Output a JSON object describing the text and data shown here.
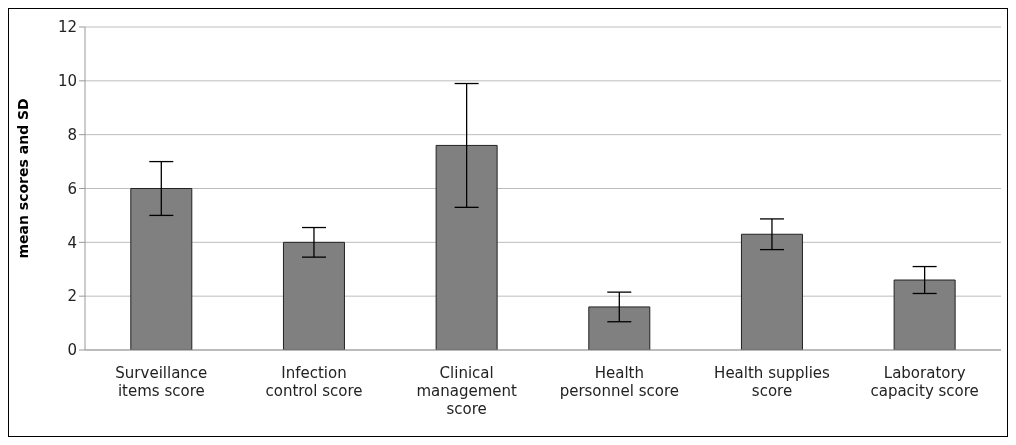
{
  "chart_data": {
    "type": "bar",
    "ylabel": "mean scores and SD",
    "categories": [
      "Surveillance items  score",
      "Infection control score",
      "Clinical management score",
      "Health personnel score",
      "Health  supplies score",
      "Laboratory capacity score"
    ],
    "values": [
      6.0,
      4.0,
      7.6,
      1.6,
      4.3,
      2.6
    ],
    "errors": [
      1.0,
      0.55,
      2.3,
      0.55,
      0.57,
      0.5
    ],
    "color": "#808080",
    "ylim": [
      0,
      12
    ],
    "yticks": [
      0,
      2,
      4,
      6,
      8,
      10,
      12
    ],
    "grid": "y"
  }
}
